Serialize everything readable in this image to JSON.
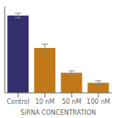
{
  "chart_data": {
    "type": "bar",
    "categories": [
      "Control",
      "10 nM",
      "50 nM",
      "100 nM"
    ],
    "values": [
      100,
      58,
      26,
      13
    ],
    "errors": [
      3,
      5,
      2.5,
      2.5
    ],
    "xlabel": "SiRNA CONCENTRATION",
    "colors": [
      "#34306e",
      "#c07818",
      "#c07818",
      "#c07818"
    ],
    "ylim": [
      0,
      112
    ],
    "yticks": [],
    "tick_labels": "x",
    "grid": false
  }
}
